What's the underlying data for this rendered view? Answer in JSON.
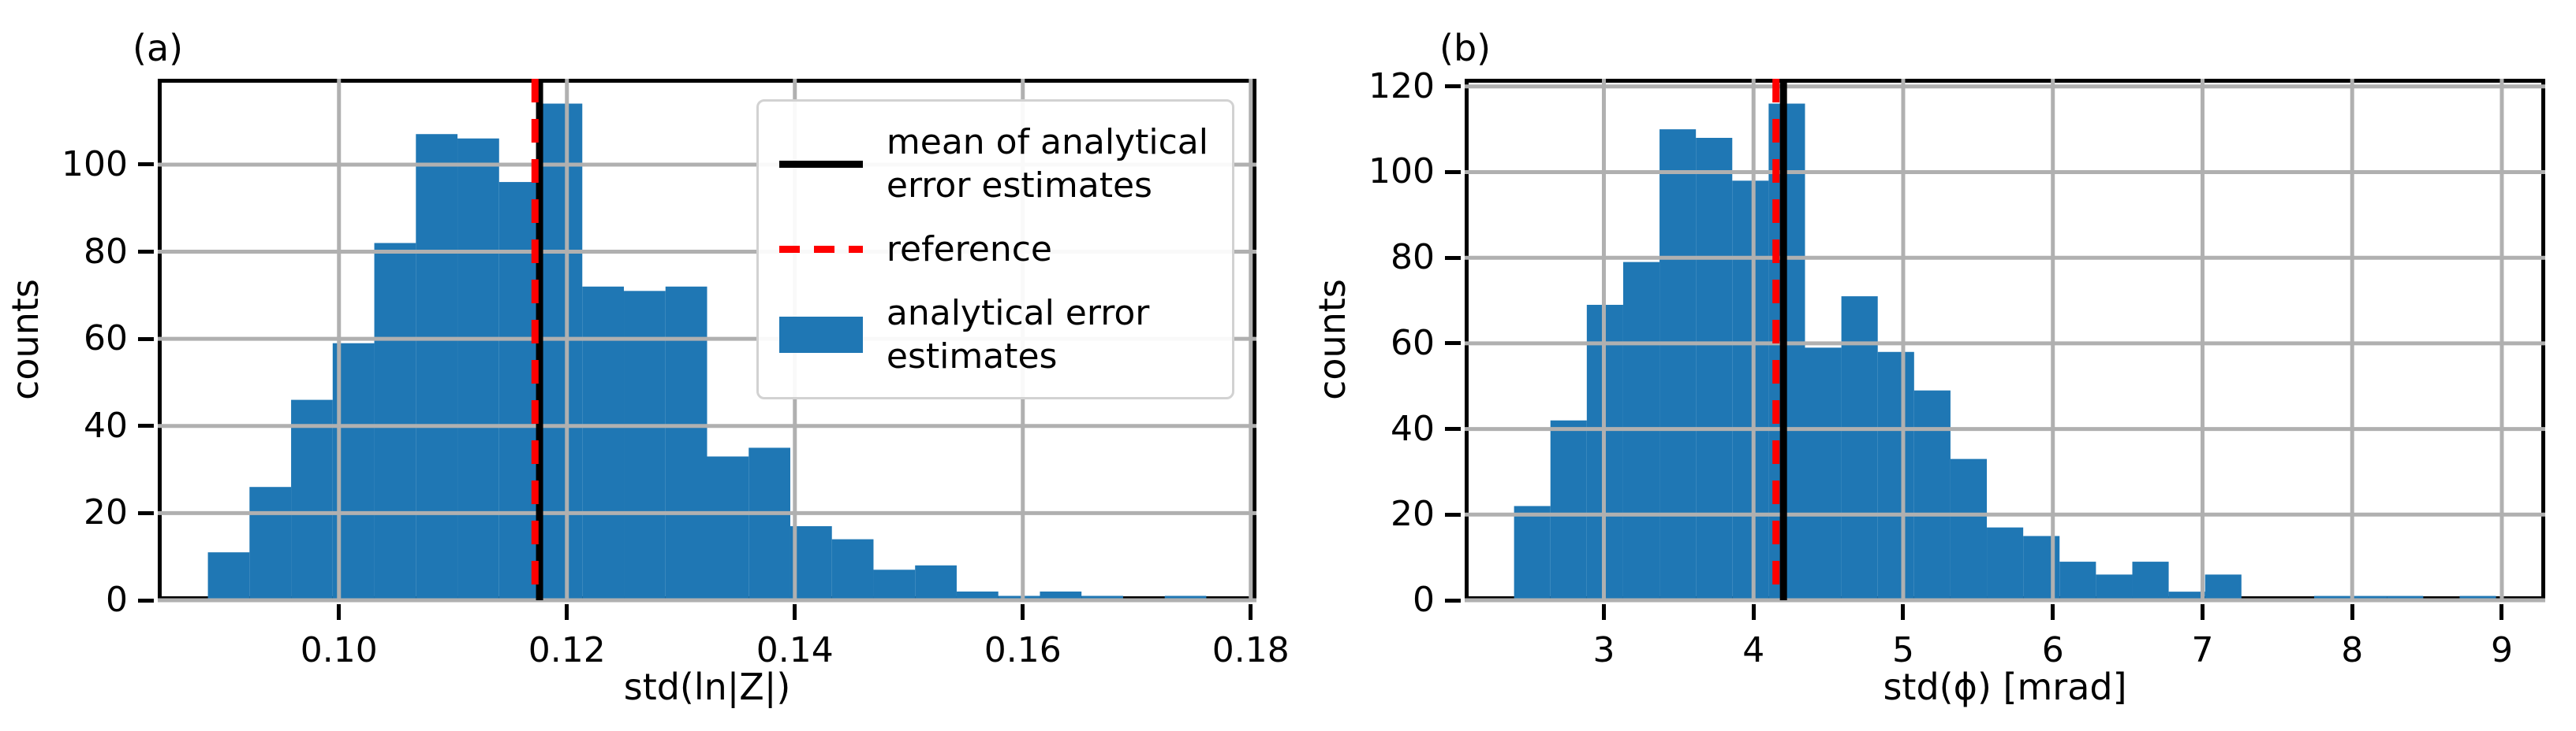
{
  "figure": {
    "background": "#ffffff",
    "colors": {
      "bar": "#1f77b4",
      "grid": "#b0b0b0",
      "mean_line": "#000000",
      "reference_line": "#ff0000",
      "spine": "#000000"
    }
  },
  "chart_data": [
    {
      "type": "bar",
      "subtype": "histogram",
      "panel": "(a)",
      "xlabel": "std(ln|Z|)",
      "ylabel": "counts",
      "bin_start": 0.0885,
      "bin_width": 0.00365,
      "counts": [
        11,
        26,
        46,
        59,
        82,
        107,
        106,
        96,
        114,
        72,
        71,
        72,
        33,
        35,
        17,
        14,
        7,
        8,
        2,
        1,
        2,
        1,
        0,
        1
      ],
      "xlim": [
        0.0841,
        0.1805
      ],
      "ylim": [
        0,
        119.7
      ],
      "xticks": [
        0.1,
        0.12,
        0.14,
        0.16,
        0.18
      ],
      "xtick_labels": [
        "0.10",
        "0.12",
        "0.14",
        "0.16",
        "0.18"
      ],
      "yticks": [
        0,
        20,
        40,
        60,
        80,
        100
      ],
      "ytick_labels": [
        "0",
        "20",
        "40",
        "60",
        "80",
        "100"
      ],
      "grid": true,
      "mean_line": 0.1176,
      "reference_line": 0.1172,
      "legend": {
        "position": "upper right",
        "entries": [
          {
            "sample": "solid-black-line",
            "label": "mean of analytical\nerror estimates"
          },
          {
            "sample": "dashed-red-line",
            "label": "reference"
          },
          {
            "sample": "blue-patch",
            "label": "analytical error\nestimates"
          }
        ]
      }
    },
    {
      "type": "bar",
      "subtype": "histogram",
      "panel": "(b)",
      "xlabel": "std(ϕ) [mrad]",
      "ylabel": "counts",
      "bin_start": 2.4,
      "bin_width": 0.243,
      "counts": [
        22,
        42,
        69,
        79,
        110,
        108,
        98,
        116,
        59,
        71,
        58,
        49,
        33,
        17,
        15,
        9,
        6,
        9,
        2,
        6,
        0,
        0,
        1,
        1,
        1,
        0,
        1
      ],
      "xlim": [
        2.07,
        9.29
      ],
      "ylim": [
        0,
        121.8
      ],
      "xticks": [
        3,
        4,
        5,
        6,
        7,
        8,
        9
      ],
      "xtick_labels": [
        "3",
        "4",
        "5",
        "6",
        "7",
        "8",
        "9"
      ],
      "yticks": [
        0,
        20,
        40,
        60,
        80,
        100,
        120
      ],
      "ytick_labels": [
        "0",
        "20",
        "40",
        "60",
        "80",
        "100",
        "120"
      ],
      "grid": true,
      "mean_line": 4.2,
      "reference_line": 4.15,
      "legend": null
    }
  ]
}
